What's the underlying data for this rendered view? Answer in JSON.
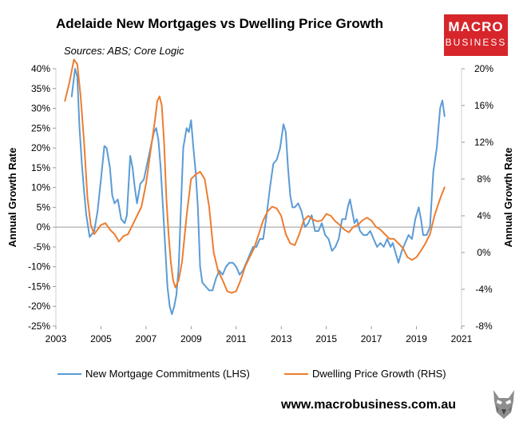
{
  "header": {
    "title": "Adelaide New Mortgages vs Dwelling Price Growth",
    "subtitle": "Sources: ABS; Core Logic",
    "logo_line1": "MACRO",
    "logo_line2": "BUSINESS"
  },
  "footer": {
    "url": "www.macrobusiness.com.au"
  },
  "colors": {
    "lhs_series": "#5b9bd5",
    "rhs_series": "#ed7d31",
    "brand": "#d6252b"
  },
  "icons": {
    "wolf": "wolf-mascot-icon"
  },
  "chart_data": {
    "type": "line",
    "title": "Adelaide New Mortgages vs Dwelling Price Growth",
    "subtitle": "Sources: ABS; Core Logic",
    "ylabel": "Annual Growth Rate",
    "ylabel_right": "Annual Growth Rate",
    "xlim": [
      2003,
      2021
    ],
    "ylim": [
      -25,
      40
    ],
    "ylim_right": [
      -8,
      20
    ],
    "x_ticks": [
      "2003",
      "2005",
      "2007",
      "2009",
      "2011",
      "2013",
      "2015",
      "2017",
      "2019",
      "2021"
    ],
    "y_ticks_left": [
      "40%",
      "35%",
      "30%",
      "25%",
      "20%",
      "15%",
      "10%",
      "5%",
      "0%",
      "-5%",
      "-10%",
      "-15%",
      "-20%",
      "-25%"
    ],
    "y_ticks_right": [
      "20%",
      "16%",
      "12%",
      "8%",
      "4%",
      "0%",
      "-4%",
      "-8%"
    ],
    "grid": false,
    "zero_line": true,
    "legend_position": "bottom",
    "series": [
      {
        "name": "New Mortgage Commitments (LHS)",
        "axis": "left",
        "points": [
          [
            2003.7,
            33
          ],
          [
            2003.85,
            40
          ],
          [
            2003.95,
            38
          ],
          [
            2004.05,
            25
          ],
          [
            2004.15,
            16
          ],
          [
            2004.25,
            9
          ],
          [
            2004.35,
            3
          ],
          [
            2004.5,
            -2.5
          ],
          [
            2004.7,
            -1
          ],
          [
            2004.85,
            4
          ],
          [
            2005.0,
            12
          ],
          [
            2005.15,
            20.5
          ],
          [
            2005.25,
            20
          ],
          [
            2005.4,
            15
          ],
          [
            2005.5,
            8
          ],
          [
            2005.6,
            6
          ],
          [
            2005.75,
            7
          ],
          [
            2005.9,
            2
          ],
          [
            2006.05,
            1
          ],
          [
            2006.15,
            3
          ],
          [
            2006.3,
            18
          ],
          [
            2006.4,
            15
          ],
          [
            2006.5,
            10
          ],
          [
            2006.6,
            6
          ],
          [
            2006.75,
            11
          ],
          [
            2006.9,
            12
          ],
          [
            2007.05,
            16
          ],
          [
            2007.2,
            20
          ],
          [
            2007.35,
            24
          ],
          [
            2007.45,
            25
          ],
          [
            2007.55,
            22
          ],
          [
            2007.65,
            15
          ],
          [
            2007.75,
            5
          ],
          [
            2007.85,
            -5
          ],
          [
            2007.95,
            -15
          ],
          [
            2008.05,
            -20
          ],
          [
            2008.15,
            -22
          ],
          [
            2008.25,
            -20
          ],
          [
            2008.35,
            -17
          ],
          [
            2008.45,
            -10
          ],
          [
            2008.55,
            5
          ],
          [
            2008.65,
            20
          ],
          [
            2008.8,
            25
          ],
          [
            2008.9,
            24
          ],
          [
            2009.0,
            27
          ],
          [
            2009.1,
            20
          ],
          [
            2009.2,
            14
          ],
          [
            2009.3,
            5
          ],
          [
            2009.4,
            -10
          ],
          [
            2009.5,
            -14
          ],
          [
            2009.65,
            -15
          ],
          [
            2009.8,
            -16
          ],
          [
            2009.95,
            -16
          ],
          [
            2010.1,
            -13
          ],
          [
            2010.25,
            -11
          ],
          [
            2010.4,
            -12
          ],
          [
            2010.55,
            -10
          ],
          [
            2010.7,
            -9
          ],
          [
            2010.85,
            -9
          ],
          [
            2011.0,
            -10
          ],
          [
            2011.15,
            -12
          ],
          [
            2011.3,
            -11
          ],
          [
            2011.45,
            -9
          ],
          [
            2011.6,
            -7
          ],
          [
            2011.75,
            -5
          ],
          [
            2011.9,
            -5
          ],
          [
            2012.05,
            -3
          ],
          [
            2012.2,
            -3
          ],
          [
            2012.35,
            3
          ],
          [
            2012.5,
            10
          ],
          [
            2012.65,
            16
          ],
          [
            2012.8,
            17
          ],
          [
            2012.95,
            20
          ],
          [
            2013.1,
            26
          ],
          [
            2013.2,
            24
          ],
          [
            2013.3,
            15
          ],
          [
            2013.4,
            8
          ],
          [
            2013.5,
            5
          ],
          [
            2013.6,
            5
          ],
          [
            2013.75,
            6
          ],
          [
            2013.9,
            4
          ],
          [
            2014.05,
            0
          ],
          [
            2014.2,
            1
          ],
          [
            2014.35,
            3
          ],
          [
            2014.5,
            -1
          ],
          [
            2014.65,
            -1
          ],
          [
            2014.8,
            1
          ],
          [
            2014.95,
            -2
          ],
          [
            2015.1,
            -3
          ],
          [
            2015.25,
            -6
          ],
          [
            2015.4,
            -5
          ],
          [
            2015.55,
            -3
          ],
          [
            2015.7,
            2
          ],
          [
            2015.85,
            2
          ],
          [
            2015.95,
            5
          ],
          [
            2016.05,
            7
          ],
          [
            2016.15,
            4
          ],
          [
            2016.25,
            1
          ],
          [
            2016.35,
            2
          ],
          [
            2016.5,
            -1
          ],
          [
            2016.65,
            -2
          ],
          [
            2016.8,
            -2
          ],
          [
            2016.95,
            -1
          ],
          [
            2017.1,
            -3
          ],
          [
            2017.25,
            -5
          ],
          [
            2017.4,
            -4
          ],
          [
            2017.55,
            -5
          ],
          [
            2017.7,
            -3
          ],
          [
            2017.85,
            -5
          ],
          [
            2017.95,
            -4
          ],
          [
            2018.05,
            -6
          ],
          [
            2018.2,
            -9
          ],
          [
            2018.35,
            -6
          ],
          [
            2018.5,
            -4
          ],
          [
            2018.65,
            -2
          ],
          [
            2018.8,
            -3
          ],
          [
            2018.95,
            2
          ],
          [
            2019.1,
            5
          ],
          [
            2019.2,
            2
          ],
          [
            2019.3,
            -2
          ],
          [
            2019.45,
            -2
          ],
          [
            2019.6,
            0
          ],
          [
            2019.75,
            14
          ],
          [
            2019.9,
            20
          ],
          [
            2020.05,
            30
          ],
          [
            2020.15,
            32
          ],
          [
            2020.25,
            28
          ]
        ]
      },
      {
        "name": "Dwelling Price Growth (RHS)",
        "axis": "right",
        "points": [
          [
            2003.4,
            16.5
          ],
          [
            2003.6,
            18.5
          ],
          [
            2003.8,
            21
          ],
          [
            2003.95,
            20.5
          ],
          [
            2004.1,
            17
          ],
          [
            2004.25,
            12
          ],
          [
            2004.4,
            6
          ],
          [
            2004.55,
            3
          ],
          [
            2004.7,
            2
          ],
          [
            2004.85,
            2.5
          ],
          [
            2005.0,
            3
          ],
          [
            2005.2,
            3.2
          ],
          [
            2005.4,
            2.5
          ],
          [
            2005.6,
            2
          ],
          [
            2005.8,
            1.2
          ],
          [
            2006.0,
            1.8
          ],
          [
            2006.2,
            2
          ],
          [
            2006.4,
            3
          ],
          [
            2006.6,
            4
          ],
          [
            2006.8,
            5
          ],
          [
            2007.0,
            7.5
          ],
          [
            2007.2,
            11
          ],
          [
            2007.4,
            14.5
          ],
          [
            2007.5,
            16.5
          ],
          [
            2007.6,
            17
          ],
          [
            2007.7,
            16
          ],
          [
            2007.8,
            12
          ],
          [
            2007.9,
            6
          ],
          [
            2008.0,
            2
          ],
          [
            2008.1,
            -1
          ],
          [
            2008.2,
            -3
          ],
          [
            2008.3,
            -3.8
          ],
          [
            2008.45,
            -3
          ],
          [
            2008.6,
            -1
          ],
          [
            2008.8,
            4
          ],
          [
            2009.0,
            8
          ],
          [
            2009.2,
            8.5
          ],
          [
            2009.4,
            8.8
          ],
          [
            2009.6,
            8
          ],
          [
            2009.8,
            5
          ],
          [
            2010.0,
            0
          ],
          [
            2010.2,
            -2
          ],
          [
            2010.4,
            -3
          ],
          [
            2010.6,
            -4.2
          ],
          [
            2010.8,
            -4.4
          ],
          [
            2011.0,
            -4.2
          ],
          [
            2011.2,
            -3
          ],
          [
            2011.4,
            -1.5
          ],
          [
            2011.6,
            -0.5
          ],
          [
            2011.8,
            0.5
          ],
          [
            2012.0,
            2
          ],
          [
            2012.2,
            3.5
          ],
          [
            2012.4,
            4.5
          ],
          [
            2012.6,
            5
          ],
          [
            2012.8,
            4.8
          ],
          [
            2013.0,
            4
          ],
          [
            2013.2,
            2
          ],
          [
            2013.4,
            1
          ],
          [
            2013.6,
            0.8
          ],
          [
            2013.8,
            2
          ],
          [
            2014.0,
            3.5
          ],
          [
            2014.2,
            4
          ],
          [
            2014.4,
            3.6
          ],
          [
            2014.6,
            3.4
          ],
          [
            2014.8,
            3.5
          ],
          [
            2015.0,
            4.2
          ],
          [
            2015.2,
            4
          ],
          [
            2015.4,
            3.4
          ],
          [
            2015.6,
            3
          ],
          [
            2015.8,
            2.5
          ],
          [
            2016.0,
            2.2
          ],
          [
            2016.2,
            2.8
          ],
          [
            2016.4,
            3
          ],
          [
            2016.6,
            3.5
          ],
          [
            2016.8,
            3.8
          ],
          [
            2017.0,
            3.5
          ],
          [
            2017.2,
            2.8
          ],
          [
            2017.4,
            2.5
          ],
          [
            2017.6,
            2
          ],
          [
            2017.8,
            1.5
          ],
          [
            2018.0,
            1.5
          ],
          [
            2018.2,
            1
          ],
          [
            2018.4,
            0.5
          ],
          [
            2018.6,
            -0.5
          ],
          [
            2018.8,
            -0.8
          ],
          [
            2019.0,
            -0.5
          ],
          [
            2019.2,
            0.2
          ],
          [
            2019.4,
            1
          ],
          [
            2019.6,
            2
          ],
          [
            2019.8,
            4
          ],
          [
            2020.0,
            5.5
          ],
          [
            2020.1,
            6.2
          ],
          [
            2020.25,
            7.1
          ]
        ]
      }
    ]
  }
}
